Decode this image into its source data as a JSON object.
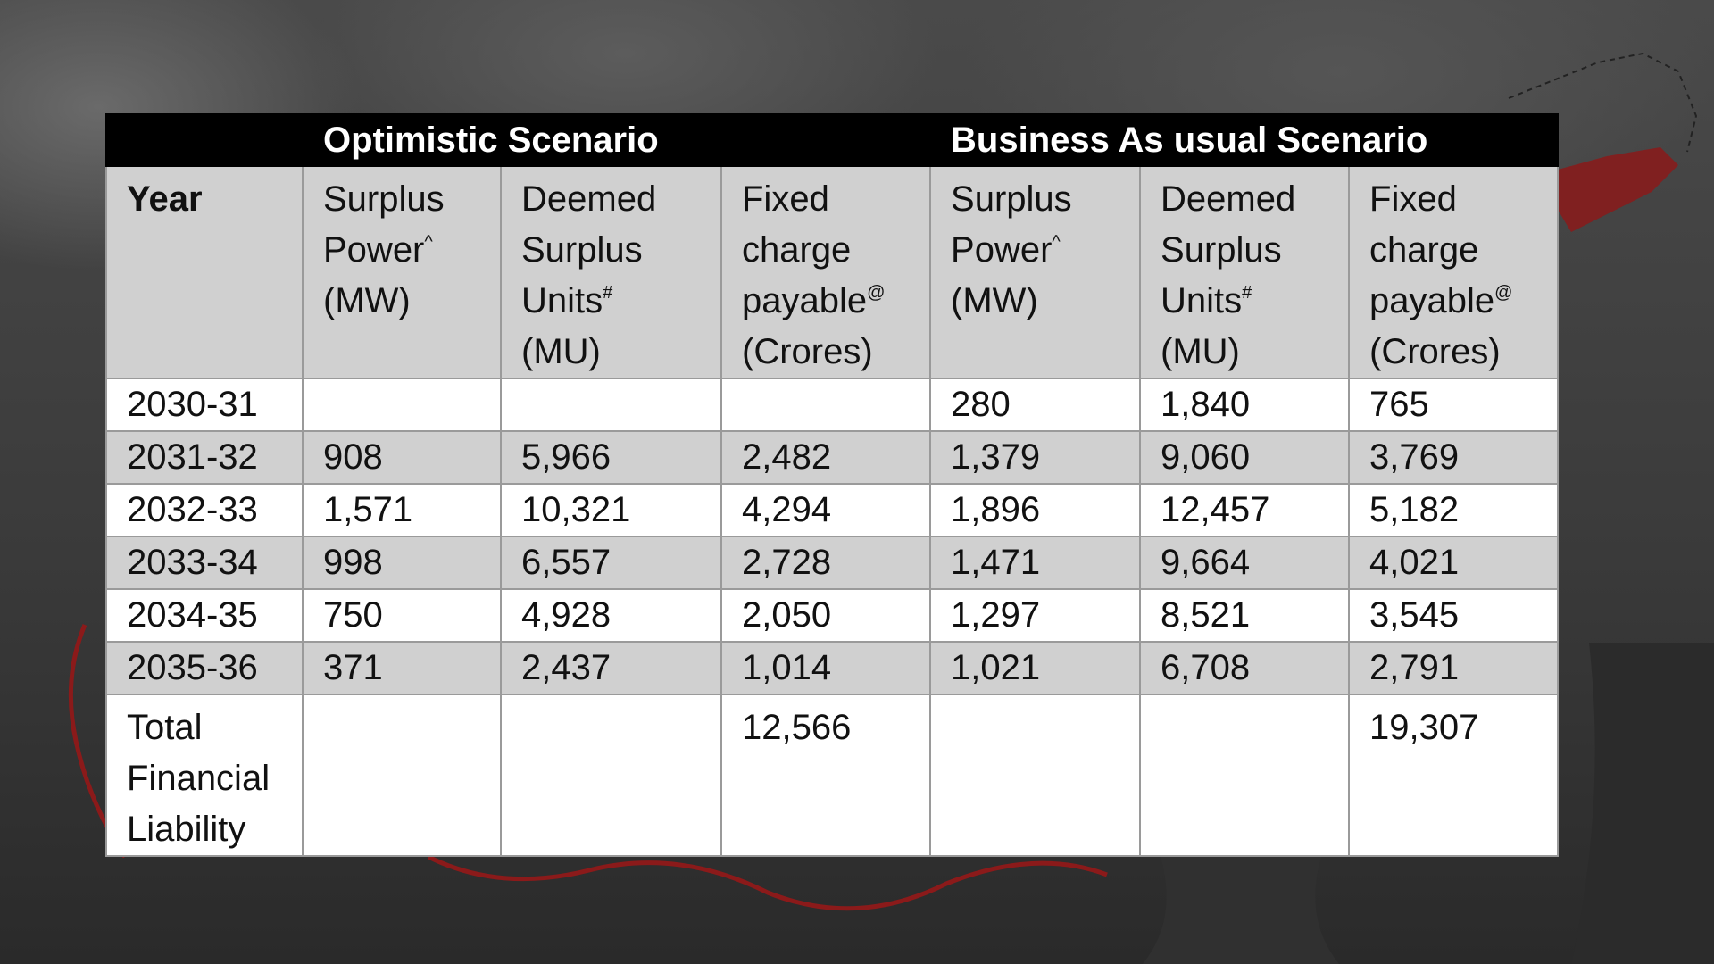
{
  "table": {
    "scenarios": [
      "Optimistic Scenario",
      "Business As usual Scenario"
    ],
    "headers": {
      "year": "Year",
      "surplus_power": [
        "Surplus",
        "Power",
        "(MW)"
      ],
      "surplus_power_mark": "^",
      "deemed_units": [
        "Deemed",
        "Surplus",
        "Units",
        "(MU)"
      ],
      "deemed_units_mark": "#",
      "fixed_charge": [
        "Fixed",
        "charge",
        "payable",
        "(Crores)"
      ],
      "fixed_charge_mark": "@"
    },
    "rows": [
      {
        "year": "2030-31",
        "opt_sp": "",
        "opt_du": "",
        "opt_fc": "",
        "bau_sp": "280",
        "bau_du": "1,840",
        "bau_fc": "765"
      },
      {
        "year": "2031-32",
        "opt_sp": "908",
        "opt_du": "5,966",
        "opt_fc": "2,482",
        "bau_sp": "1,379",
        "bau_du": "9,060",
        "bau_fc": "3,769"
      },
      {
        "year": "2032-33",
        "opt_sp": "1,571",
        "opt_du": "10,321",
        "opt_fc": "4,294",
        "bau_sp": "1,896",
        "bau_du": "12,457",
        "bau_fc": "5,182"
      },
      {
        "year": "2033-34",
        "opt_sp": "998",
        "opt_du": "6,557",
        "opt_fc": "2,728",
        "bau_sp": "1,471",
        "bau_du": "9,664",
        "bau_fc": "4,021"
      },
      {
        "year": "2034-35",
        "opt_sp": "750",
        "opt_du": "4,928",
        "opt_fc": "2,050",
        "bau_sp": "1,297",
        "bau_du": "8,521",
        "bau_fc": "3,545"
      },
      {
        "year": "2035-36",
        "opt_sp": "371",
        "opt_du": "2,437",
        "opt_fc": "1,014",
        "bau_sp": "1,021",
        "bau_du": "6,708",
        "bau_fc": "2,791"
      }
    ],
    "total": {
      "label": [
        "Total",
        "Financial",
        "Liability"
      ],
      "opt_fc": "12,566",
      "bau_fc": "19,307"
    }
  },
  "colors": {
    "scenario_band": "#000000",
    "header_fill": "#d0d0d0",
    "row_shade": "#d0d0d0",
    "grid_line": "#9a9a9a",
    "background_accent": "#8b1a1a"
  }
}
